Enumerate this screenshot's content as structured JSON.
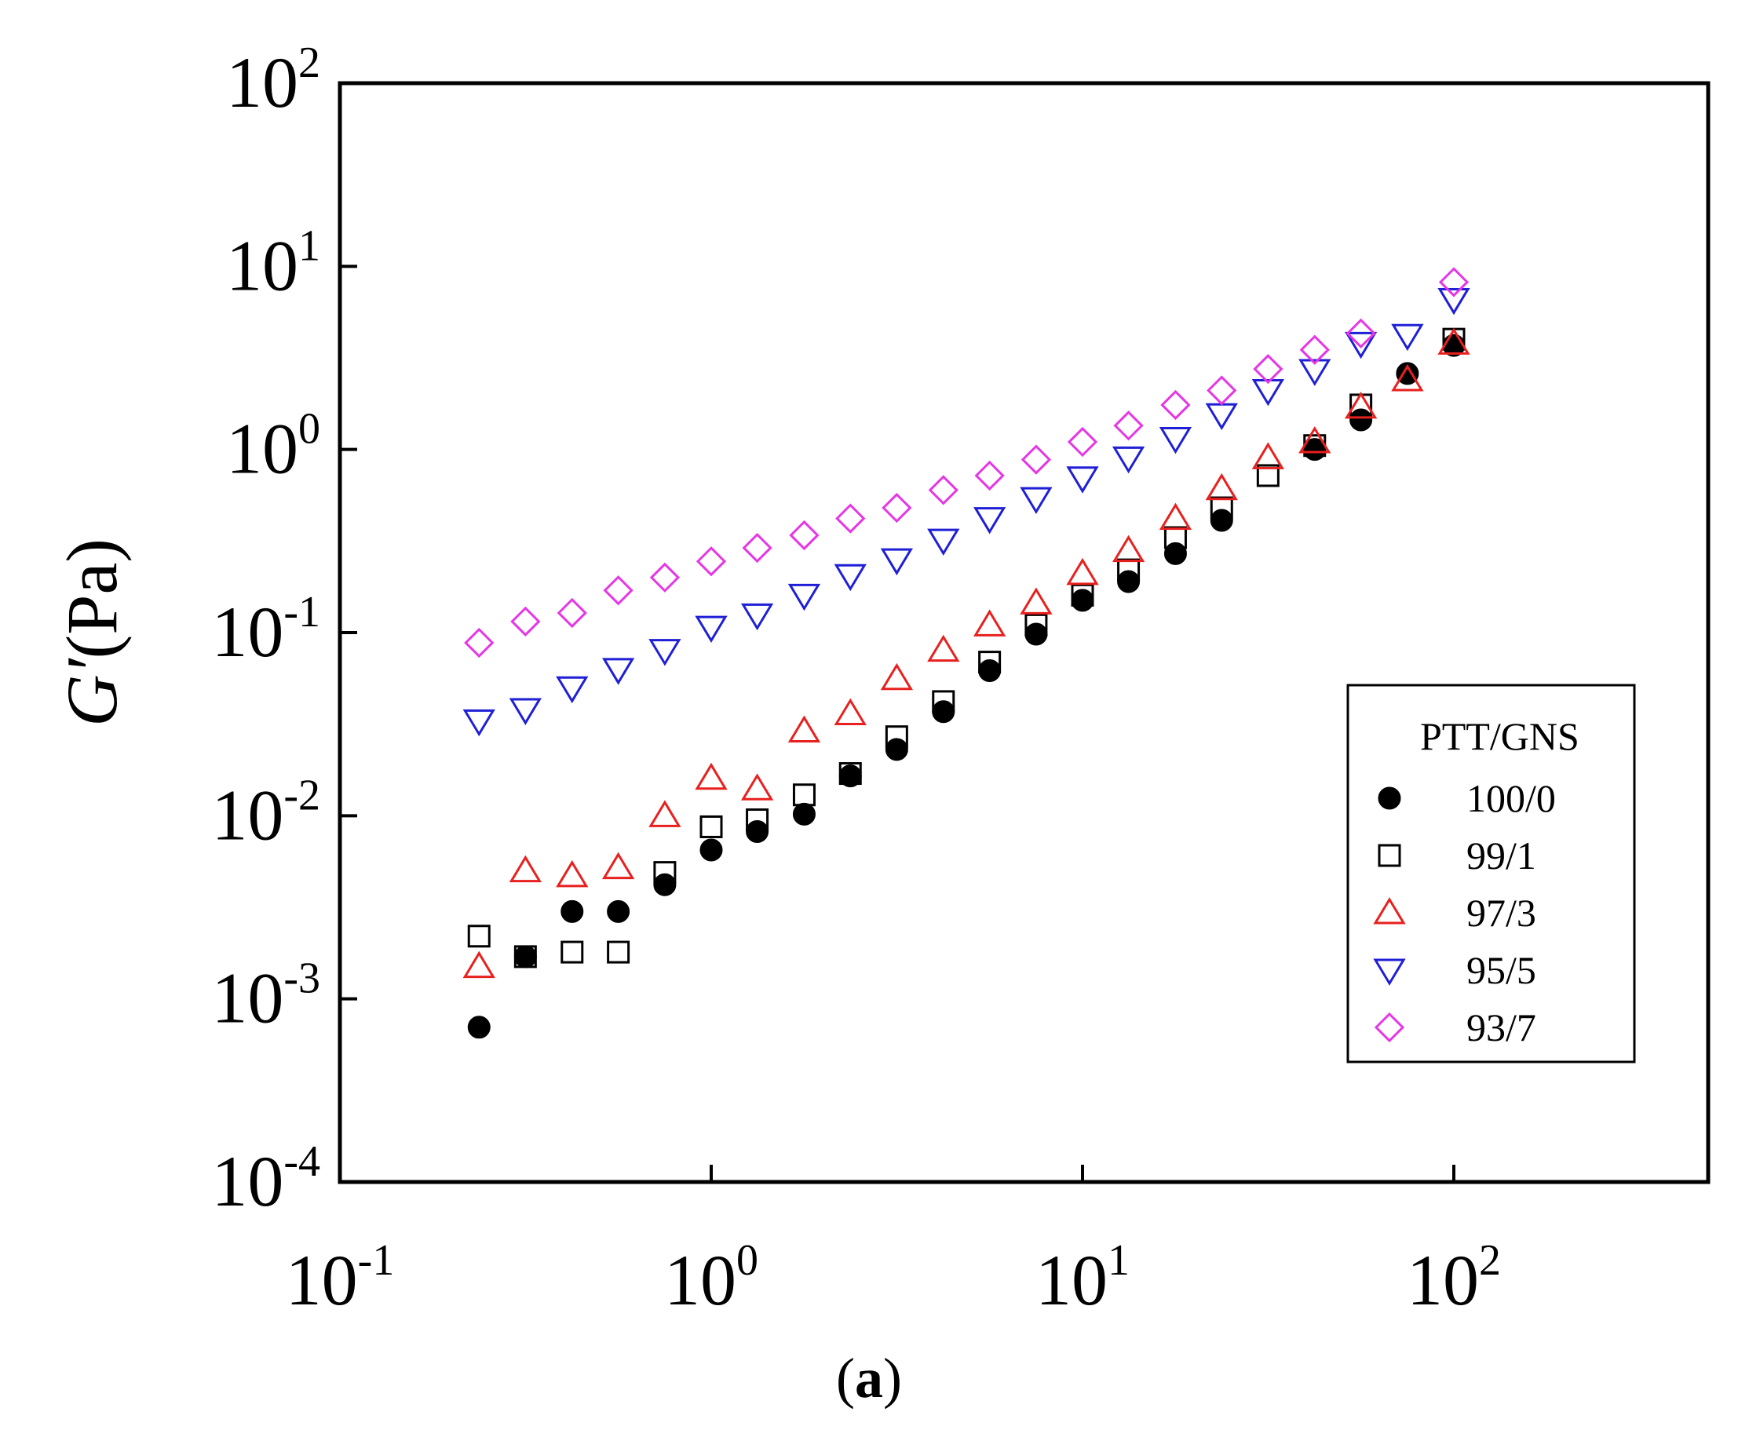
{
  "chart_data": {
    "type": "scatter",
    "title": "",
    "caption": {
      "open": "(",
      "letter": "a",
      "close": ")"
    },
    "xlabel": "",
    "ylabel": {
      "symbol": "G′",
      "unit": "(Pa)"
    },
    "xscale": "log",
    "yscale": "log",
    "xlim": [
      0.1,
      500
    ],
    "ylim": [
      0.0001,
      100
    ],
    "x_ticks": [
      {
        "value": 0.1,
        "base": "10",
        "exp": "-1"
      },
      {
        "value": 1,
        "base": "10",
        "exp": "0"
      },
      {
        "value": 10,
        "base": "10",
        "exp": "1"
      },
      {
        "value": 100,
        "base": "10",
        "exp": "2"
      }
    ],
    "y_ticks": [
      {
        "value": 0.0001,
        "base": "10",
        "exp": "-4"
      },
      {
        "value": 0.001,
        "base": "10",
        "exp": "-3"
      },
      {
        "value": 0.01,
        "base": "10",
        "exp": "-2"
      },
      {
        "value": 0.1,
        "base": "10",
        "exp": "-1"
      },
      {
        "value": 1,
        "base": "10",
        "exp": "0"
      },
      {
        "value": 10,
        "base": "10",
        "exp": "1"
      },
      {
        "value": 100,
        "base": "10",
        "exp": "2"
      }
    ],
    "legend": {
      "title": "PTT/GNS",
      "position": "right-middle"
    },
    "x": [
      0.237,
      0.316,
      0.422,
      0.562,
      0.75,
      1.0,
      1.33,
      1.78,
      2.37,
      3.16,
      4.22,
      5.62,
      7.5,
      10.0,
      13.3,
      17.8,
      23.7,
      31.6,
      42.2,
      56.2,
      75.0,
      100.0
    ],
    "series": [
      {
        "name": "100/0",
        "marker": "filled-circle",
        "color": "#000000",
        "values": [
          0.0007,
          0.0017,
          0.003,
          0.003,
          0.0042,
          0.0065,
          0.0082,
          0.0102,
          0.0165,
          0.023,
          0.037,
          0.062,
          0.098,
          0.15,
          0.19,
          0.27,
          0.41,
          null,
          1.0,
          1.45,
          2.6,
          3.7
        ]
      },
      {
        "name": "99/1",
        "marker": "open-square",
        "color": "#000000",
        "values": [
          0.0022,
          0.0017,
          0.0018,
          0.0018,
          0.0049,
          0.0087,
          0.0095,
          0.013,
          0.017,
          0.027,
          0.042,
          0.069,
          0.11,
          0.16,
          0.22,
          0.33,
          0.48,
          0.72,
          1.05,
          1.75,
          null,
          4.0
        ]
      },
      {
        "name": "97/3",
        "marker": "open-triangle-up",
        "color": "#e8201e",
        "values": [
          0.0015,
          0.005,
          0.0047,
          0.0052,
          0.01,
          0.016,
          0.014,
          0.029,
          0.036,
          0.056,
          0.08,
          0.11,
          0.145,
          0.21,
          0.28,
          0.42,
          0.61,
          0.9,
          1.1,
          1.7,
          2.4,
          3.8
        ]
      },
      {
        "name": "95/5",
        "marker": "open-triangle-down",
        "color": "#1f1fd6",
        "values": [
          0.033,
          0.038,
          0.05,
          0.063,
          0.08,
          0.107,
          0.125,
          0.16,
          0.205,
          0.25,
          0.32,
          0.42,
          0.54,
          0.7,
          0.9,
          1.15,
          1.55,
          2.1,
          2.7,
          3.8,
          4.2,
          6.6
        ]
      },
      {
        "name": "93/7",
        "marker": "open-diamond",
        "color": "#e636e6",
        "values": [
          0.088,
          0.115,
          0.128,
          0.17,
          0.2,
          0.245,
          0.29,
          0.34,
          0.42,
          0.48,
          0.6,
          0.72,
          0.88,
          1.1,
          1.35,
          1.75,
          2.1,
          2.75,
          3.5,
          4.3,
          null,
          8.2
        ]
      }
    ]
  }
}
